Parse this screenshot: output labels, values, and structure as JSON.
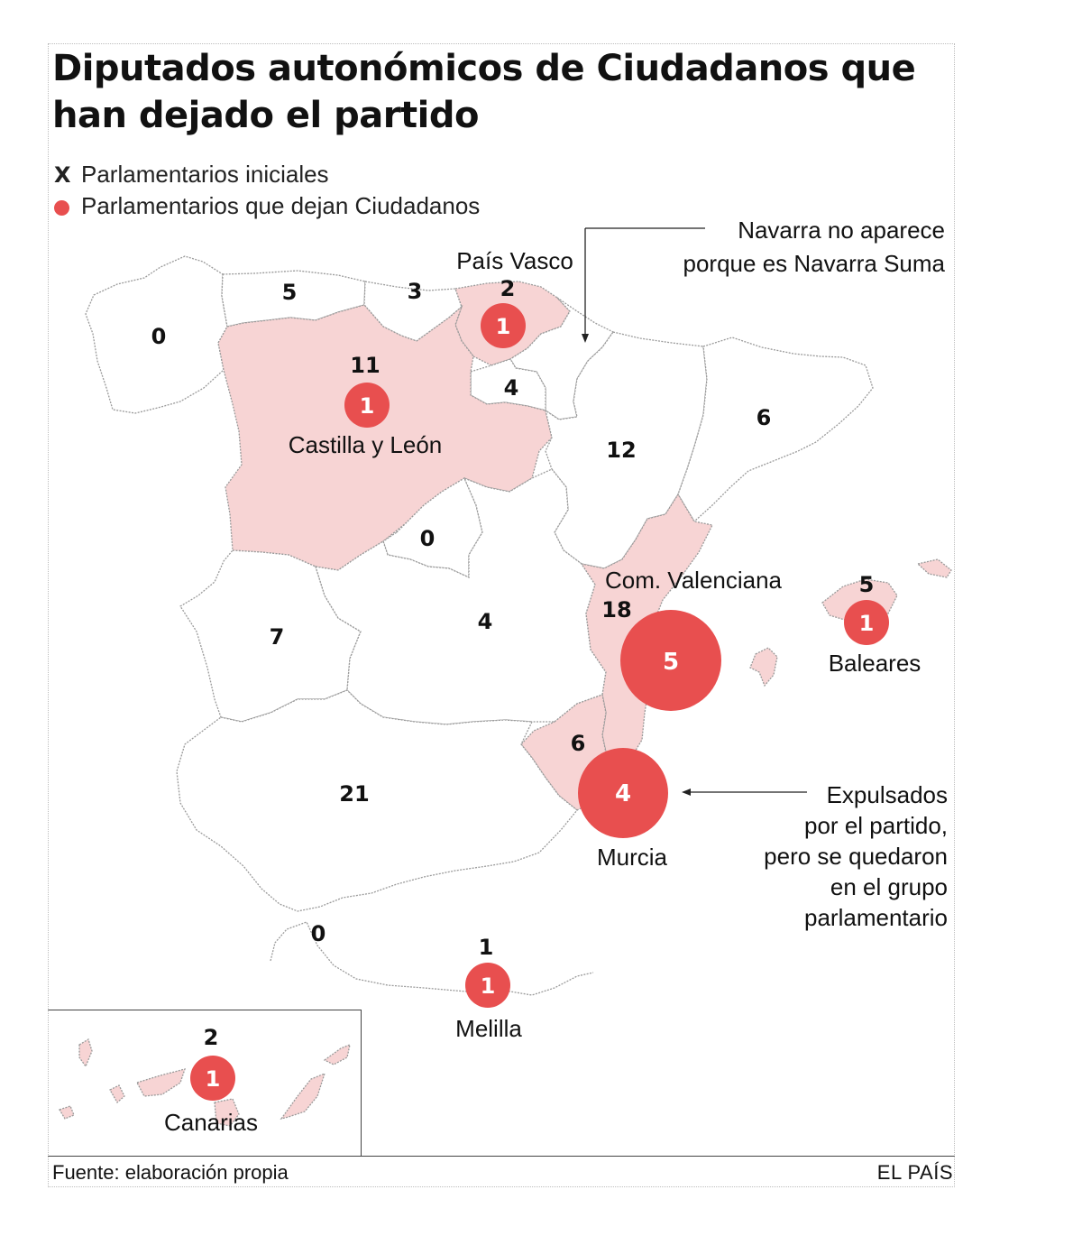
{
  "title": "Diputados autonómicos de Ciudadanos que han dejado el partido",
  "legend": {
    "initial_symbol": "X",
    "initial_label": "Parlamentarios iniciales",
    "left_label": "Parlamentarios que dejan Ciudadanos"
  },
  "colors": {
    "bubble": "#e84f4f",
    "highlight_region": "#f7d4d4",
    "region": "#ffffff",
    "border": "#9a9a9a"
  },
  "regions": [
    {
      "key": "galicia",
      "initial": "0",
      "highlighted": false
    },
    {
      "key": "asturias",
      "initial": "5",
      "highlighted": false
    },
    {
      "key": "cantabria",
      "initial": "3",
      "highlighted": false
    },
    {
      "key": "pais_vasco",
      "name": "País Vasco",
      "initial": "2",
      "left": "1",
      "highlighted": true
    },
    {
      "key": "castilla_leon",
      "name": "Castilla y León",
      "initial": "11",
      "left": "1",
      "highlighted": true
    },
    {
      "key": "la_rioja",
      "initial": "4",
      "highlighted": false
    },
    {
      "key": "aragon",
      "initial": "12",
      "highlighted": false
    },
    {
      "key": "cataluna",
      "initial": "6",
      "highlighted": false
    },
    {
      "key": "madrid",
      "initial": "0",
      "highlighted": false
    },
    {
      "key": "extremadura",
      "initial": "7",
      "highlighted": false
    },
    {
      "key": "castilla_la_mancha",
      "initial": "4",
      "highlighted": false
    },
    {
      "key": "com_valenciana",
      "name": "Com. Valenciana",
      "initial": "18",
      "left": "5",
      "highlighted": true
    },
    {
      "key": "baleares",
      "name": "Baleares",
      "initial": "5",
      "left": "1",
      "highlighted": true
    },
    {
      "key": "murcia",
      "name": "Murcia",
      "initial": "6",
      "left": "4",
      "highlighted": true
    },
    {
      "key": "andalucia",
      "initial": "21",
      "highlighted": false
    },
    {
      "key": "ceuta",
      "initial": "0",
      "highlighted": false
    },
    {
      "key": "melilla",
      "name": "Melilla",
      "initial": "1",
      "left": "1",
      "highlighted": true
    },
    {
      "key": "canarias",
      "name": "Canarias",
      "initial": "2",
      "left": "1",
      "highlighted": true
    }
  ],
  "notes": {
    "navarra": [
      "Navarra no aparece",
      "porque es Navarra Suma"
    ],
    "murcia": [
      "Expulsados",
      "por el partido,",
      "pero se quedaron",
      "en el grupo",
      "parlamentario"
    ]
  },
  "footer": {
    "source": "Fuente: elaboración propia",
    "brand": "EL PAÍS"
  }
}
